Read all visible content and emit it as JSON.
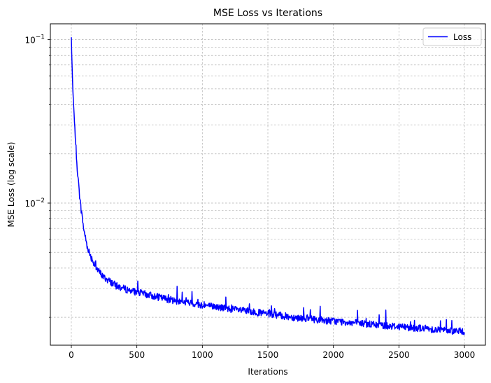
{
  "chart_data": {
    "type": "line",
    "title": "MSE Loss vs Iterations",
    "xlabel": "Iterations",
    "ylabel": "MSE Loss (log scale)",
    "yscale": "log",
    "xlim": [
      -160,
      3160
    ],
    "ylim": [
      0.00135,
      0.125
    ],
    "x_ticks": [
      0,
      500,
      1000,
      1500,
      2000,
      2500,
      3000
    ],
    "x_tick_labels": [
      "0",
      "500",
      "1000",
      "1500",
      "2000",
      "2500",
      "3000"
    ],
    "y_major_ticks": [
      0.01,
      0.1
    ],
    "y_tick_bases": [
      "10",
      "10"
    ],
    "y_tick_exponents": [
      "−2",
      "−1"
    ],
    "y_minor_ticks": [
      0.002,
      0.003,
      0.004,
      0.005,
      0.006,
      0.007,
      0.008,
      0.009,
      0.02,
      0.03,
      0.04,
      0.05,
      0.06,
      0.07,
      0.08,
      0.09
    ],
    "grid": true,
    "legend_position": "top-right",
    "series": [
      {
        "name": "Loss",
        "color": "#0000ff",
        "x": [
          0,
          10,
          20,
          30,
          40,
          50,
          60,
          70,
          80,
          90,
          100,
          120,
          140,
          160,
          180,
          200,
          250,
          300,
          350,
          400,
          450,
          500,
          600,
          700,
          800,
          900,
          1000,
          1100,
          1200,
          1300,
          1400,
          1500,
          1600,
          1700,
          1800,
          1900,
          2000,
          2100,
          2200,
          2300,
          2400,
          2500,
          2600,
          2700,
          2800,
          2900,
          3000
        ],
        "y": [
          0.103,
          0.052,
          0.036,
          0.026,
          0.019,
          0.0145,
          0.0118,
          0.0098,
          0.0085,
          0.0074,
          0.0066,
          0.0055,
          0.0049,
          0.0045,
          0.0042,
          0.0039,
          0.0035,
          0.0033,
          0.0031,
          0.003,
          0.00292,
          0.00285,
          0.00273,
          0.00262,
          0.00252,
          0.00245,
          0.00238,
          0.00232,
          0.00226,
          0.0022,
          0.00215,
          0.0021,
          0.00205,
          0.002,
          0.00197,
          0.00193,
          0.0019,
          0.00187,
          0.00184,
          0.00181,
          0.00178,
          0.00176,
          0.00173,
          0.00171,
          0.00168,
          0.00166,
          0.00164
        ]
      }
    ]
  }
}
